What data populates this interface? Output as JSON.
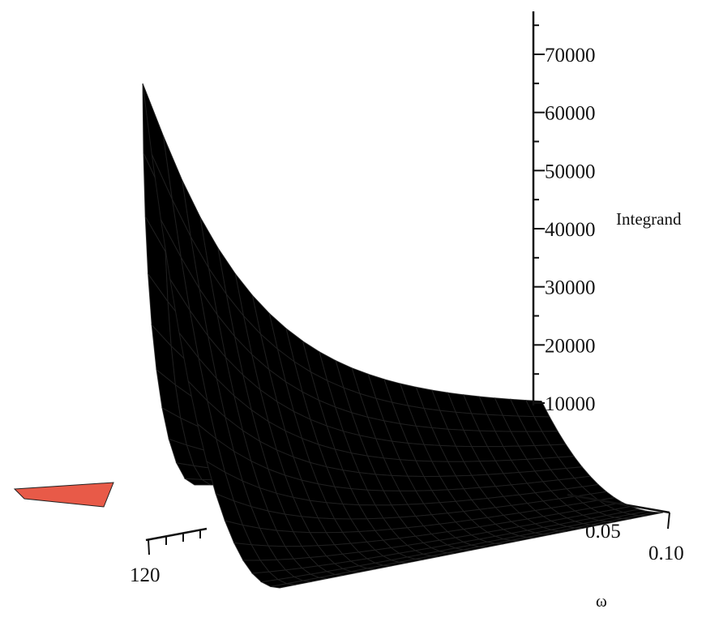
{
  "chart_data": {
    "type": "surface3d",
    "title": "",
    "zlabel": "Integrand",
    "xlabel": "",
    "ylabel": "ω",
    "z_ticks": [
      "10000",
      "20000",
      "30000",
      "40000",
      "50000",
      "60000",
      "70000"
    ],
    "z_tick_values": [
      10000,
      20000,
      30000,
      40000,
      50000,
      60000,
      70000
    ],
    "x_ticks_visible": [
      "120"
    ],
    "omega_ticks_visible": [
      "0.05",
      "0.10"
    ],
    "omega_range": [
      0,
      0.1
    ],
    "zlim": [
      0,
      75000
    ],
    "peak": {
      "value": 65000,
      "omega": 0.0
    },
    "surface": {
      "n_omega": 24,
      "n_depth": 15,
      "profile": "sharp rise to peak at omega=0, exponential decay toward omega=0.10 with plateau near 9000"
    },
    "colors": {
      "peak": "#d07ad8",
      "mid": "#c9a04a",
      "far_front": "#f2f24a",
      "far_right": "#55e055",
      "back_left": "#e85a48",
      "grid_line": "#222222"
    }
  }
}
